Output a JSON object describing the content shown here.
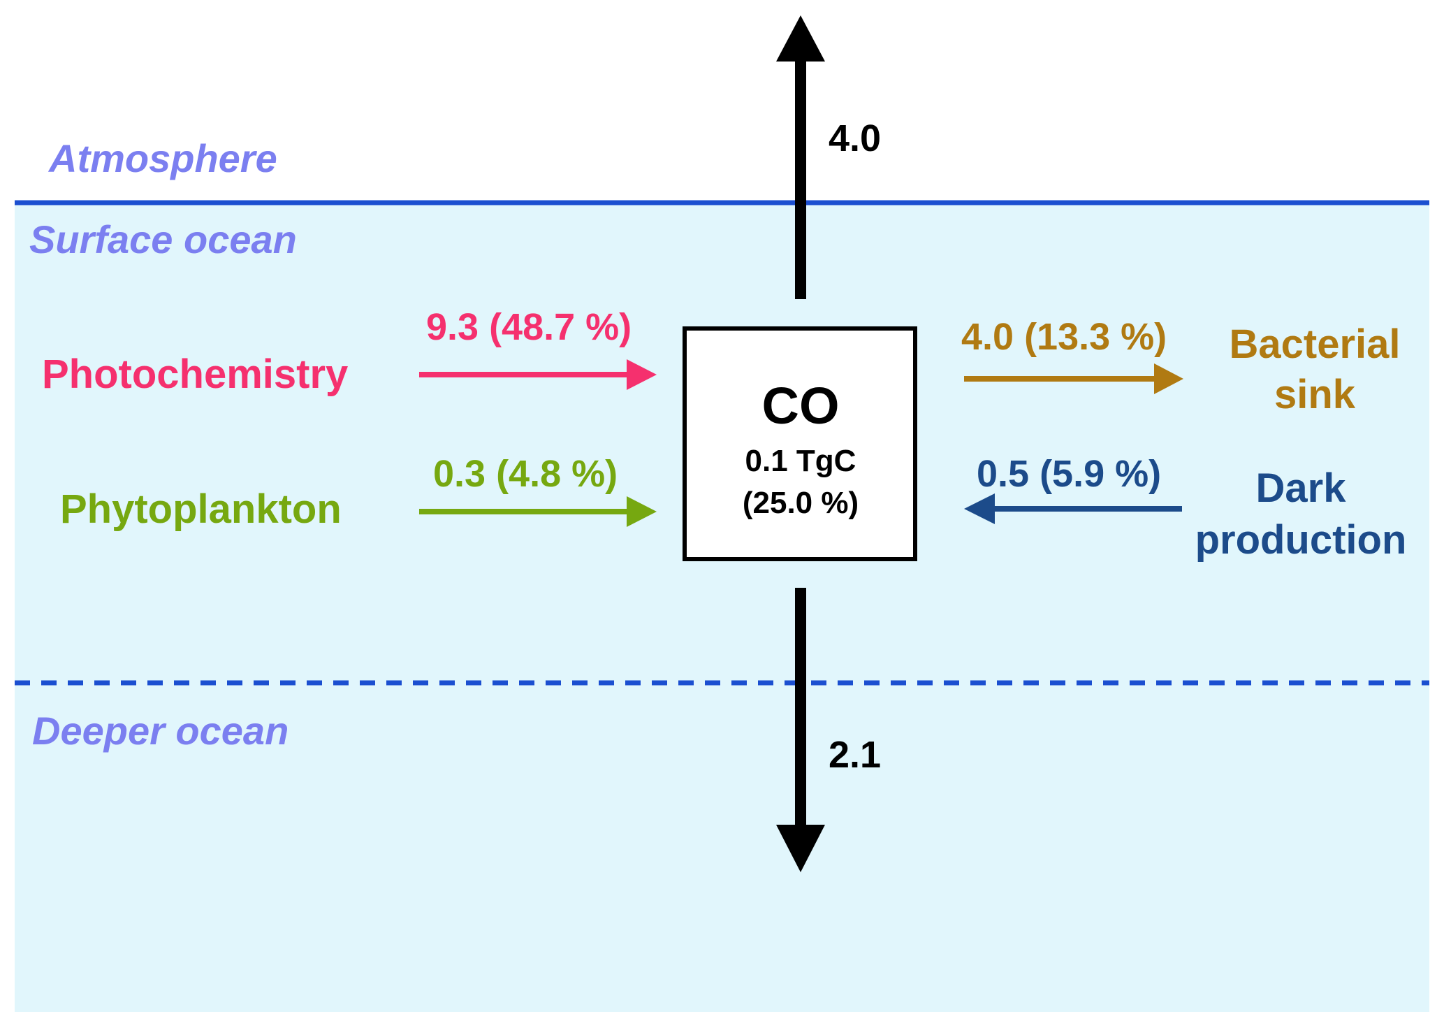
{
  "colors": {
    "ocean_fill": "#e1f6fc",
    "boundary_line": "#1b4fd0",
    "layer_text": "#7b7ff0",
    "photochemistry": "#f5306e",
    "phytoplankton": "#76a810",
    "bacterial": "#b07a12",
    "dark_production": "#1c4b8a",
    "black": "#000000",
    "box_fill": "#ffffff"
  },
  "layers": {
    "atmosphere": "Atmosphere",
    "surface_ocean": "Surface ocean",
    "deeper_ocean": "Deeper ocean"
  },
  "pool": {
    "title": "CO",
    "amount": "0.1 TgC",
    "percent": "(25.0 %)"
  },
  "fluxes": {
    "atmosphere_out": "4.0",
    "deep_export": "2.1",
    "photochemistry": "9.3 (48.7 %)",
    "phytoplankton": "0.3 (4.8 %)",
    "bacterial_sink": "4.0 (13.3  %)",
    "dark_production": "0.5 (5.9 %)"
  },
  "processes": {
    "photochemistry": "Photochemistry",
    "phytoplankton": "Phytoplankton",
    "bacterial_sink_line1": "Bacterial",
    "bacterial_sink_line2": "sink",
    "dark_production_line1": "Dark",
    "dark_production_line2": "production"
  }
}
